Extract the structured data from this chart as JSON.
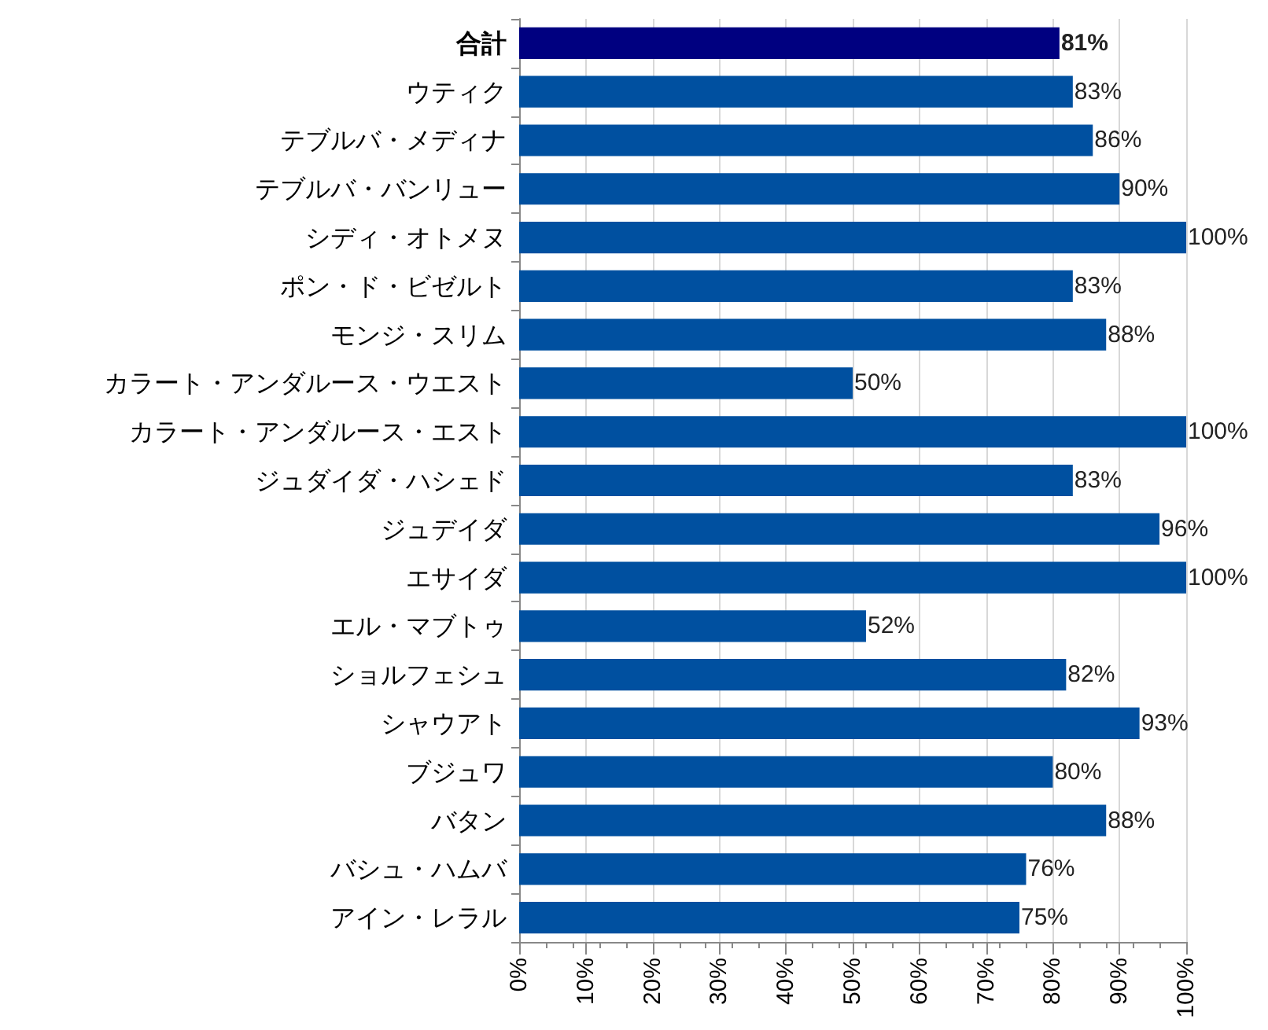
{
  "chart_data": {
    "type": "bar",
    "orientation": "horizontal",
    "categories": [
      "合計",
      "ウティク",
      "テブルバ・メディナ",
      "テブルバ・バンリュー",
      "シディ・オトメヌ",
      "ポン・ド・ビゼルト",
      "モンジ・スリム",
      "カラート・アンダルース・ウエスト",
      "カラート・アンダルース・エスト",
      "ジュダイダ・ハシェド",
      "ジュデイダ",
      "エサイダ",
      "エル・マブトゥ",
      "ショルフェシュ",
      "シャウアト",
      "ブジュワ",
      "バタン",
      "バシュ・ハムバ",
      "アイン・レラル"
    ],
    "values": [
      81,
      83,
      86,
      90,
      100,
      83,
      88,
      50,
      100,
      83,
      96,
      100,
      52,
      82,
      93,
      80,
      88,
      76,
      75
    ],
    "value_labels": [
      "81%",
      "83%",
      "86%",
      "90%",
      "100%",
      "83%",
      "88%",
      "50%",
      "100%",
      "83%",
      "96%",
      "100%",
      "52%",
      "82%",
      "93%",
      "80%",
      "88%",
      "76%",
      "75%"
    ],
    "colors": [
      "#000080",
      "#0050a0",
      "#0050a0",
      "#0050a0",
      "#0050a0",
      "#0050a0",
      "#0050a0",
      "#0050a0",
      "#0050a0",
      "#0050a0",
      "#0050a0",
      "#0050a0",
      "#0050a0",
      "#0050a0",
      "#0050a0",
      "#0050a0",
      "#0050a0",
      "#0050a0",
      "#0050a0"
    ],
    "xlim": [
      0,
      100
    ],
    "xticks": [
      {
        "value": 0,
        "label": "0%"
      },
      {
        "value": 10,
        "label": "10%"
      },
      {
        "value": 20,
        "label": "20%"
      },
      {
        "value": 30,
        "label": "30%"
      },
      {
        "value": 40,
        "label": "40%"
      },
      {
        "value": 50,
        "label": "50%"
      },
      {
        "value": 60,
        "label": "60%"
      },
      {
        "value": 70,
        "label": "70%"
      },
      {
        "value": 80,
        "label": "80%"
      },
      {
        "value": 90,
        "label": "90%"
      },
      {
        "value": 100,
        "label": "100%"
      }
    ],
    "grid": "x"
  }
}
